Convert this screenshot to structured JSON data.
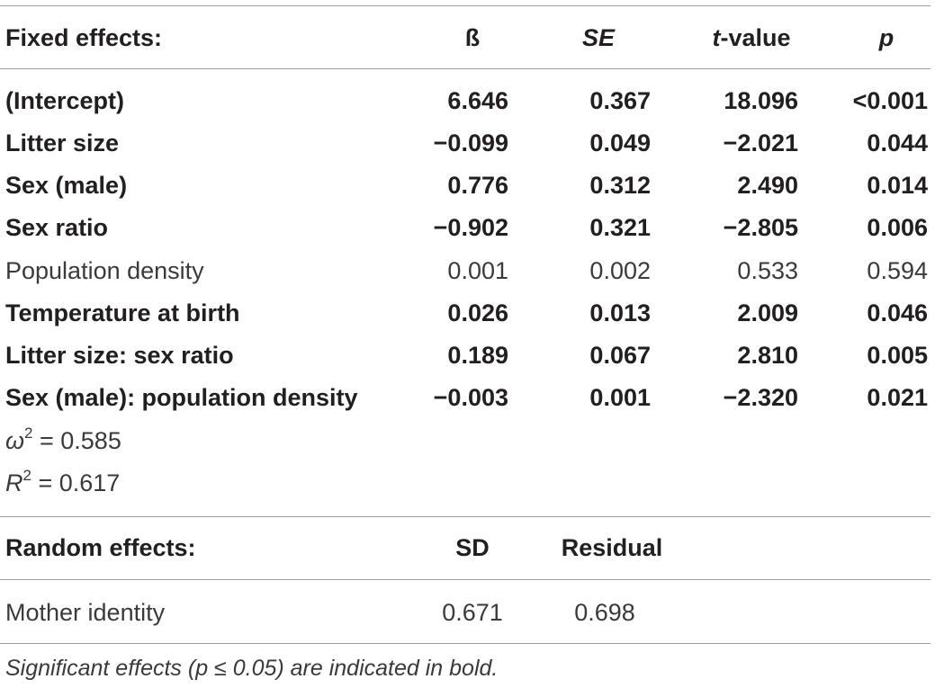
{
  "fixed_header": {
    "label": "Fixed effects:",
    "beta": "ß",
    "se": "SE",
    "t_italic": "t",
    "t_rest": "-value",
    "p": "p"
  },
  "fixed_rows": [
    {
      "name": "(Intercept)",
      "beta": "6.646",
      "se": "0.367",
      "t": "18.096",
      "p": "<0.001",
      "significant": true
    },
    {
      "name": "Litter size",
      "beta": "−0.099",
      "se": "0.049",
      "t": "−2.021",
      "p": "0.044",
      "significant": true
    },
    {
      "name": "Sex (male)",
      "beta": "0.776",
      "se": "0.312",
      "t": "2.490",
      "p": "0.014",
      "significant": true
    },
    {
      "name": "Sex ratio",
      "beta": "−0.902",
      "se": "0.321",
      "t": "−2.805",
      "p": "0.006",
      "significant": true
    },
    {
      "name": "Population density",
      "beta": "0.001",
      "se": "0.002",
      "t": "0.533",
      "p": "0.594",
      "significant": false
    },
    {
      "name": "Temperature at birth",
      "beta": "0.026",
      "se": "0.013",
      "t": "2.009",
      "p": "0.046",
      "significant": true
    },
    {
      "name": "Litter size: sex ratio",
      "beta": "0.189",
      "se": "0.067",
      "t": "2.810",
      "p": "0.005",
      "significant": true
    },
    {
      "name": "Sex (male): population density",
      "beta": "−0.003",
      "se": "0.001",
      "t": "−2.320",
      "p": "0.021",
      "significant": true
    }
  ],
  "stats": {
    "omega_symbol": "ω",
    "omega_sup": "2",
    "omega_value": " = 0.585",
    "r_symbol": "R",
    "r_sup": "2",
    "r_value": " = 0.617"
  },
  "random_header": {
    "label": "Random effects:",
    "sd": "SD",
    "residual": "Residual"
  },
  "random_rows": [
    {
      "name": "Mother identity",
      "sd": "0.671",
      "residual": "0.698"
    }
  ],
  "footnote": "Significant effects (p ≤ 0.05) are indicated in bold."
}
